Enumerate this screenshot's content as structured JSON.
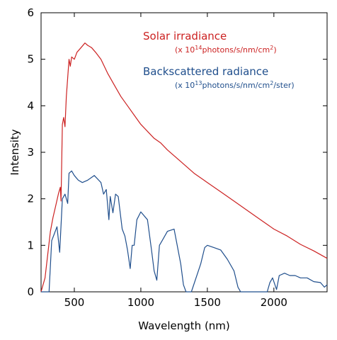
{
  "chart_data": {
    "type": "line",
    "xlabel": "Wavelength (nm)",
    "ylabel": "Intensity",
    "xlim": [
      250,
      2400
    ],
    "ylim": [
      0,
      6
    ],
    "xticks": [
      500,
      1000,
      1500,
      2000
    ],
    "yticks": [
      0,
      1,
      2,
      3,
      4,
      5,
      6
    ],
    "grid": false,
    "legend_position": "top-right",
    "series": [
      {
        "name": "Solar irradiance",
        "unit_prefix": "(x 10",
        "unit_exp": "14",
        "unit_mid": "photons/s/nm/cm",
        "unit_exp2": "2",
        "unit_suffix": ")",
        "color": "#cc2222",
        "x": [
          250,
          280,
          300,
          320,
          340,
          360,
          380,
          395,
          400,
          410,
          420,
          430,
          440,
          450,
          460,
          470,
          480,
          500,
          520,
          550,
          580,
          600,
          630,
          660,
          700,
          750,
          800,
          850,
          900,
          950,
          1000,
          1050,
          1100,
          1150,
          1200,
          1300,
          1400,
          1500,
          1600,
          1700,
          1800,
          1900,
          2000,
          2100,
          2200,
          2300,
          2400
        ],
        "y": [
          0.0,
          0.3,
          0.8,
          1.3,
          1.6,
          1.85,
          2.1,
          2.25,
          1.95,
          3.6,
          3.75,
          3.55,
          4.2,
          4.6,
          5.0,
          4.85,
          5.05,
          5.0,
          5.15,
          5.25,
          5.35,
          5.3,
          5.25,
          5.15,
          5.0,
          4.7,
          4.45,
          4.2,
          4.0,
          3.8,
          3.6,
          3.45,
          3.3,
          3.2,
          3.05,
          2.8,
          2.55,
          2.35,
          2.15,
          1.95,
          1.75,
          1.55,
          1.35,
          1.2,
          1.02,
          0.88,
          0.72
        ]
      },
      {
        "name": "Backscattered radiance",
        "unit_prefix": "(x 10",
        "unit_exp": "13",
        "unit_mid": "photons/s/nm/cm",
        "unit_exp2": "2",
        "unit_suffix": "/ster)",
        "color": "#1f4e8c",
        "x": [
          250,
          290,
          310,
          330,
          350,
          370,
          390,
          410,
          430,
          450,
          460,
          480,
          500,
          530,
          560,
          600,
          650,
          700,
          720,
          740,
          760,
          770,
          790,
          810,
          830,
          860,
          880,
          900,
          920,
          935,
          950,
          970,
          1000,
          1050,
          1080,
          1100,
          1120,
          1140,
          1160,
          1200,
          1250,
          1300,
          1320,
          1340,
          1360,
          1380,
          1450,
          1480,
          1500,
          1550,
          1600,
          1650,
          1700,
          1730,
          1750,
          1770,
          1800,
          1820,
          1860,
          1900,
          1950,
          1970,
          1990,
          2020,
          2040,
          2080,
          2120,
          2160,
          2200,
          2250,
          2300,
          2350,
          2380,
          2400
        ],
        "y": [
          0.0,
          0.0,
          0.0,
          1.1,
          1.25,
          1.4,
          0.85,
          2.0,
          2.1,
          1.9,
          2.55,
          2.6,
          2.5,
          2.4,
          2.35,
          2.4,
          2.5,
          2.35,
          2.1,
          2.2,
          1.55,
          2.05,
          1.7,
          2.1,
          2.05,
          1.35,
          1.2,
          0.9,
          0.5,
          1.0,
          1.0,
          1.55,
          1.72,
          1.55,
          0.9,
          0.45,
          0.25,
          1.0,
          1.1,
          1.3,
          1.35,
          0.6,
          0.15,
          0.0,
          0.0,
          0.0,
          0.6,
          0.95,
          1.0,
          0.95,
          0.9,
          0.7,
          0.45,
          0.1,
          0.0,
          0.0,
          0.0,
          0.0,
          0.0,
          0.0,
          0.0,
          0.2,
          0.3,
          0.05,
          0.35,
          0.4,
          0.35,
          0.35,
          0.3,
          0.3,
          0.22,
          0.2,
          0.1,
          0.15
        ]
      }
    ]
  }
}
